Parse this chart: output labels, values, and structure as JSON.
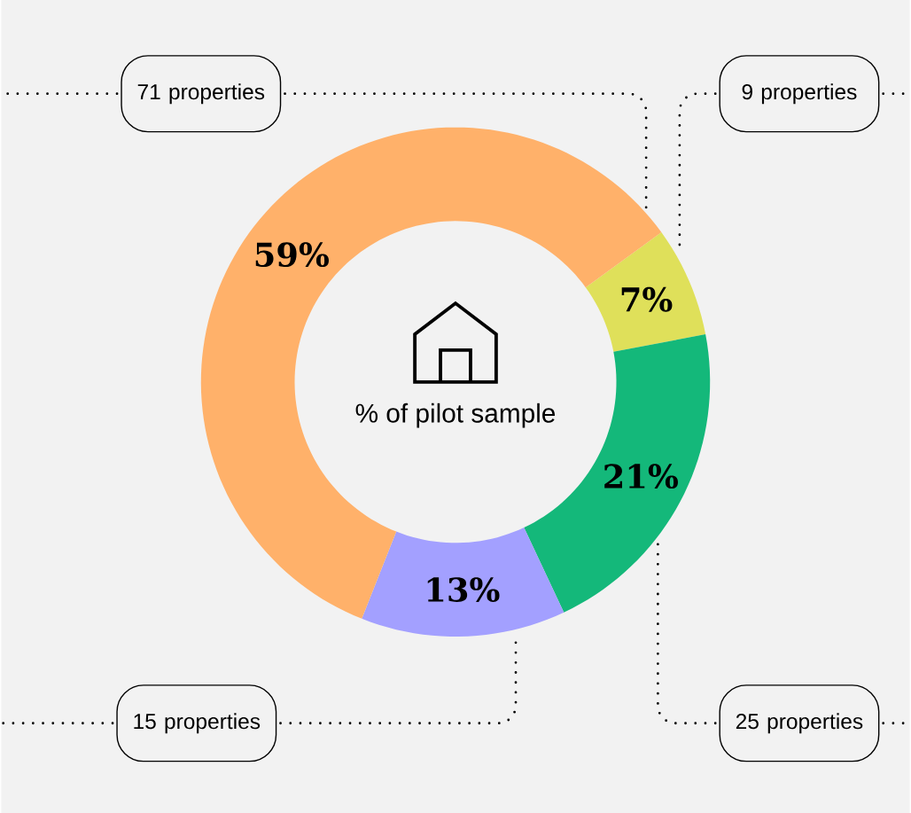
{
  "chart_data": {
    "type": "donut",
    "title": "% of pilot sample",
    "categories": [
      null,
      null,
      null,
      null
    ],
    "values": [
      7,
      21,
      13,
      59
    ],
    "colors": [
      "#dfe05a",
      "#14b87a",
      "#a3a0ff",
      "#ffb16a"
    ],
    "value_labels": [
      "7%",
      "21%",
      "13%",
      "59%"
    ],
    "annotations": [
      "9 properties",
      "25 properties",
      "15 properties",
      "71 properties"
    ]
  }
}
